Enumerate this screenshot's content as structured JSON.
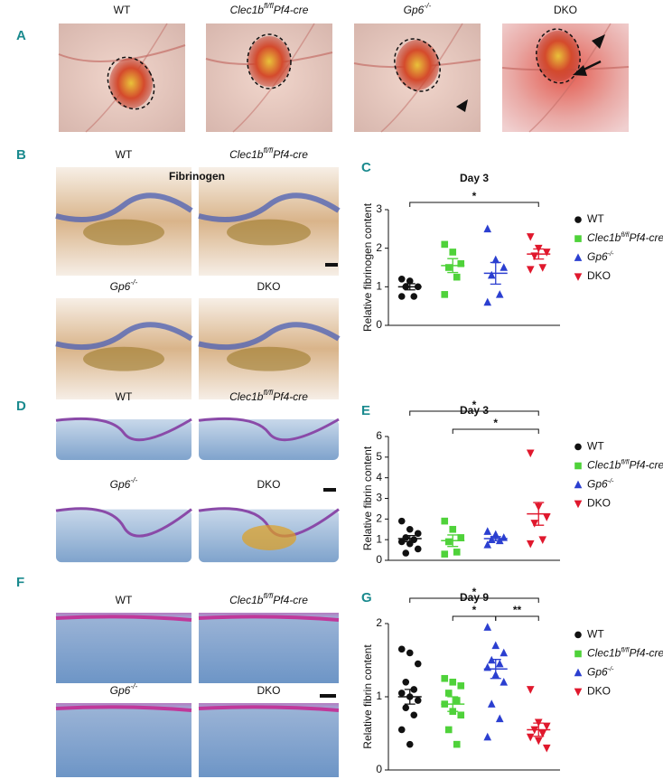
{
  "panel_letters": [
    "A",
    "B",
    "C",
    "D",
    "E",
    "F",
    "G"
  ],
  "genotypes": [
    {
      "italic": false,
      "parts": [
        {
          "text": "WT"
        }
      ]
    },
    {
      "italic": true,
      "parts": [
        {
          "text": "Clec1b"
        },
        {
          "text": "fl/fl",
          "sup": true
        },
        {
          "text": "Pf4-cre"
        }
      ]
    },
    {
      "italic": true,
      "parts": [
        {
          "text": "Gp6"
        },
        {
          "text": "-/-",
          "sup": true
        }
      ]
    },
    {
      "italic": false,
      "parts": [
        {
          "text": "DKO"
        }
      ]
    }
  ],
  "stain_label": "Fibrinogen",
  "chart_data": [
    {
      "type": "strip",
      "title": "Day 3",
      "y_label": "Relative fibrinogen content",
      "ylim": [
        0,
        3
      ],
      "yticks": [
        0,
        1,
        2,
        3
      ],
      "legend": "right",
      "series": [
        {
          "name": [
            {
              "text": "WT"
            }
          ],
          "italic": false,
          "color": "#111111",
          "marker": "circle",
          "values": [
            1.2,
            1.15,
            1.0,
            1.0,
            0.75,
            0.75
          ],
          "mean": 1.0,
          "error": 0.08
        },
        {
          "name": [
            {
              "text": "Clec1b"
            },
            {
              "text": "fl/fl",
              "sup": true
            },
            {
              "text": "Pf4-cre"
            }
          ],
          "italic": true,
          "color": "#4fd23a",
          "marker": "square",
          "values": [
            2.1,
            1.9,
            1.6,
            1.5,
            1.25,
            0.8
          ],
          "mean": 1.55,
          "error": 0.18
        },
        {
          "name": [
            {
              "text": "Gp6"
            },
            {
              "text": "-/-",
              "sup": true
            }
          ],
          "italic": true,
          "color": "#2b3fd0",
          "marker": "triangle-up",
          "values": [
            2.5,
            1.7,
            1.5,
            1.3,
            0.8,
            0.6
          ],
          "mean": 1.35,
          "error": 0.28
        },
        {
          "name": [
            {
              "text": "DKO"
            }
          ],
          "italic": false,
          "color": "#e0182d",
          "marker": "triangle-down",
          "values": [
            2.3,
            2.0,
            1.9,
            1.8,
            1.5,
            1.45
          ],
          "mean": 1.85,
          "error": 0.13
        }
      ],
      "annotations": [
        {
          "text": "*",
          "from": 0,
          "to": 3
        }
      ]
    },
    {
      "type": "strip",
      "title": "Day 3",
      "y_label": "Relative fibrin content",
      "ylim": [
        0,
        6
      ],
      "yticks": [
        0,
        1,
        2,
        3,
        4,
        5,
        6
      ],
      "legend": "right",
      "series": [
        {
          "name": [
            {
              "text": "WT"
            }
          ],
          "italic": false,
          "color": "#111111",
          "marker": "circle",
          "values": [
            1.9,
            1.5,
            1.3,
            1.1,
            1.0,
            0.9,
            0.8,
            0.55,
            0.35
          ],
          "mean": 1.05,
          "error": 0.15
        },
        {
          "name": [
            {
              "text": "Clec1b"
            },
            {
              "text": "fl/fl",
              "sup": true
            },
            {
              "text": "Pf4-cre"
            }
          ],
          "italic": true,
          "color": "#4fd23a",
          "marker": "square",
          "values": [
            1.9,
            1.5,
            1.1,
            0.9,
            0.4,
            0.3
          ],
          "mean": 0.95,
          "error": 0.28
        },
        {
          "name": [
            {
              "text": "Gp6"
            },
            {
              "text": "-/-",
              "sup": true
            }
          ],
          "italic": true,
          "color": "#2b3fd0",
          "marker": "triangle-up",
          "values": [
            1.4,
            1.25,
            1.1,
            1.0,
            0.95,
            0.75
          ],
          "mean": 1.05,
          "error": 0.1
        },
        {
          "name": [
            {
              "text": "DKO"
            }
          ],
          "italic": false,
          "color": "#e0182d",
          "marker": "triangle-down",
          "values": [
            5.2,
            2.6,
            2.1,
            1.8,
            1.0,
            0.8
          ],
          "mean": 2.25,
          "error": 0.55
        }
      ],
      "annotations": [
        {
          "text": "*",
          "from": 0,
          "to": 3
        },
        {
          "text": "*",
          "from": 1,
          "to": 3
        }
      ]
    },
    {
      "type": "strip",
      "title": "Day 9",
      "y_label": "Relative fibrin content",
      "ylim": [
        0,
        2
      ],
      "yticks": [
        0,
        1,
        2
      ],
      "legend": "right",
      "series": [
        {
          "name": [
            {
              "text": "WT"
            }
          ],
          "italic": false,
          "color": "#111111",
          "marker": "circle",
          "values": [
            1.65,
            1.6,
            1.45,
            1.2,
            1.1,
            1.05,
            1.0,
            0.95,
            0.85,
            0.75,
            0.55,
            0.35
          ],
          "mean": 1.0,
          "error": 0.1
        },
        {
          "name": [
            {
              "text": "Clec1b"
            },
            {
              "text": "fl/fl",
              "sup": true
            },
            {
              "text": "Pf4-cre"
            }
          ],
          "italic": true,
          "color": "#4fd23a",
          "marker": "square",
          "values": [
            1.25,
            1.2,
            1.15,
            1.05,
            0.95,
            0.9,
            0.8,
            0.75,
            0.55,
            0.35
          ],
          "mean": 0.9,
          "error": 0.1
        },
        {
          "name": [
            {
              "text": "Gp6"
            },
            {
              "text": "-/-",
              "sup": true
            }
          ],
          "italic": true,
          "color": "#2b3fd0",
          "marker": "triangle-up",
          "values": [
            1.95,
            1.7,
            1.6,
            1.5,
            1.45,
            1.4,
            1.3,
            1.2,
            0.9,
            0.7,
            0.45
          ],
          "mean": 1.38,
          "error": 0.13
        },
        {
          "name": [
            {
              "text": "DKO"
            }
          ],
          "italic": false,
          "color": "#e0182d",
          "marker": "triangle-down",
          "values": [
            1.1,
            0.65,
            0.6,
            0.55,
            0.5,
            0.45,
            0.4,
            0.3
          ],
          "mean": 0.55,
          "error": 0.09
        }
      ],
      "annotations": [
        {
          "text": "*",
          "from": 0,
          "to": 3
        },
        {
          "text": "*",
          "from": 1,
          "to": 2
        },
        {
          "text": "**",
          "from": 2,
          "to": 3
        }
      ]
    }
  ]
}
